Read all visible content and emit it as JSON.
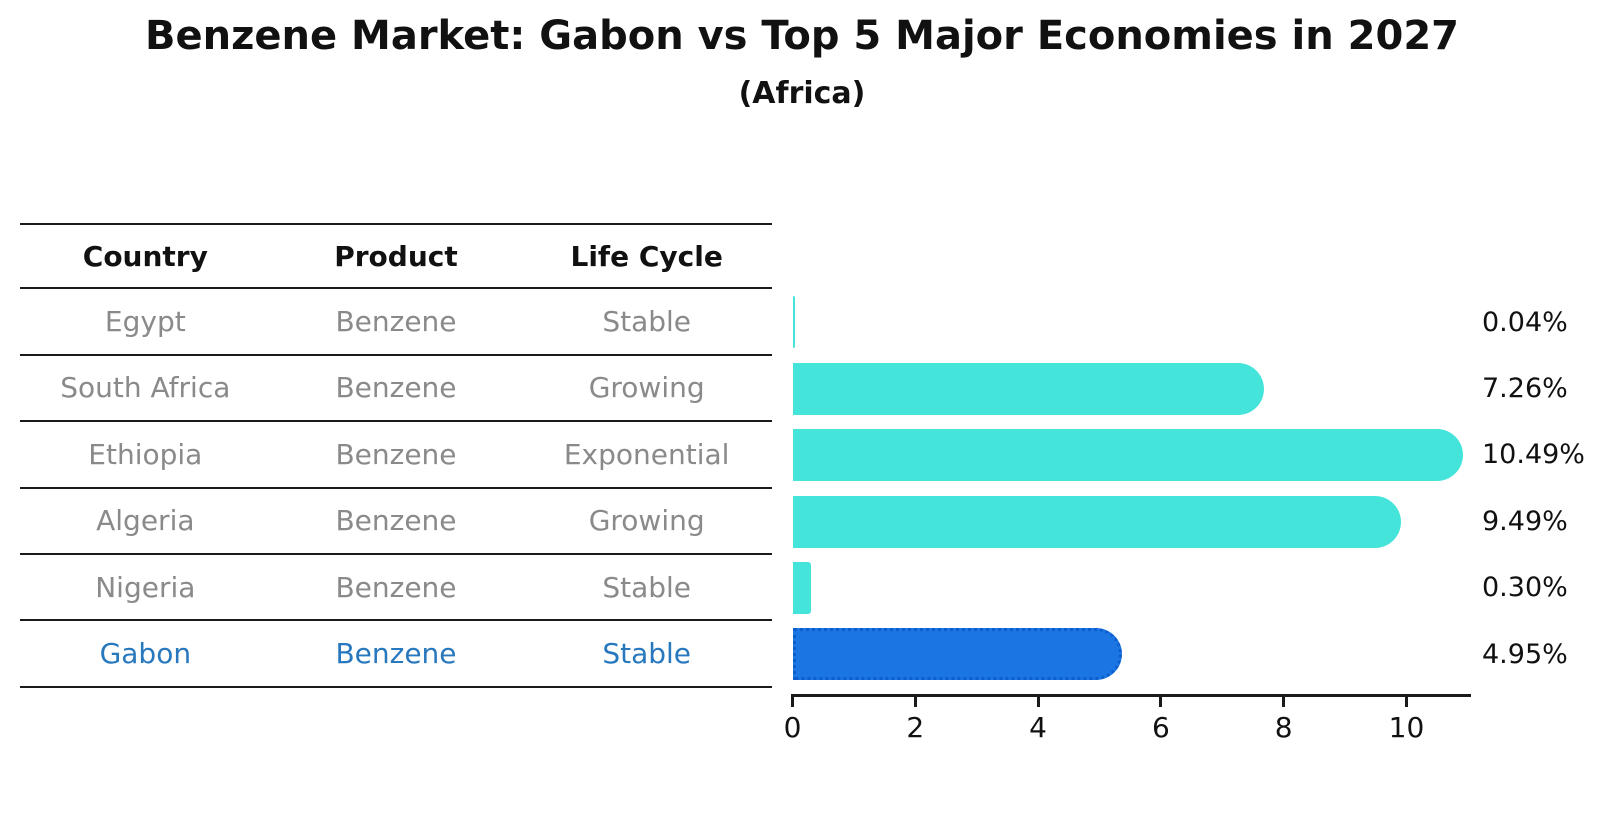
{
  "title": "Benzene Market: Gabon vs Top 5 Major Economies in 2027",
  "subtitle": "(Africa)",
  "table": {
    "columns": [
      "Country",
      "Product",
      "Life Cycle"
    ],
    "rows": [
      {
        "country": "Egypt",
        "product": "Benzene",
        "life_cycle": "Stable",
        "highlight": false
      },
      {
        "country": "South Africa",
        "product": "Benzene",
        "life_cycle": "Growing",
        "highlight": false
      },
      {
        "country": "Ethiopia",
        "product": "Benzene",
        "life_cycle": "Exponential",
        "highlight": false
      },
      {
        "country": "Algeria",
        "product": "Benzene",
        "life_cycle": "Growing",
        "highlight": false
      },
      {
        "country": "Nigeria",
        "product": "Benzene",
        "life_cycle": "Stable",
        "highlight": false
      },
      {
        "country": "Gabon",
        "product": "Benzene",
        "life_cycle": "Stable",
        "highlight": true
      }
    ]
  },
  "chart_data": {
    "type": "bar",
    "orientation": "horizontal",
    "title": "Benzene Market: Gabon vs Top 5 Major Economies in 2027 (Africa)",
    "categories": [
      "Egypt",
      "South Africa",
      "Ethiopia",
      "Algeria",
      "Nigeria",
      "Gabon"
    ],
    "values": [
      0.04,
      7.26,
      10.49,
      9.49,
      0.3,
      4.95
    ],
    "value_labels": [
      "0.04%",
      "7.26%",
      "10.49%",
      "9.49%",
      "0.30%",
      "4.95%"
    ],
    "highlight_category": "Gabon",
    "x_ticks": [
      "0",
      "2",
      "4",
      "6",
      "8",
      "10"
    ],
    "xlim": [
      0,
      11.05
    ],
    "grid": false,
    "legend": false,
    "colors": {
      "bar": "#45E4DB",
      "highlight_bar": "#1B76E4",
      "highlight_bar_border": "#0D5ECD",
      "highlight_text": "#2878BE",
      "row_text": "#8a8a8a",
      "axis": "#1a1a1a"
    }
  }
}
